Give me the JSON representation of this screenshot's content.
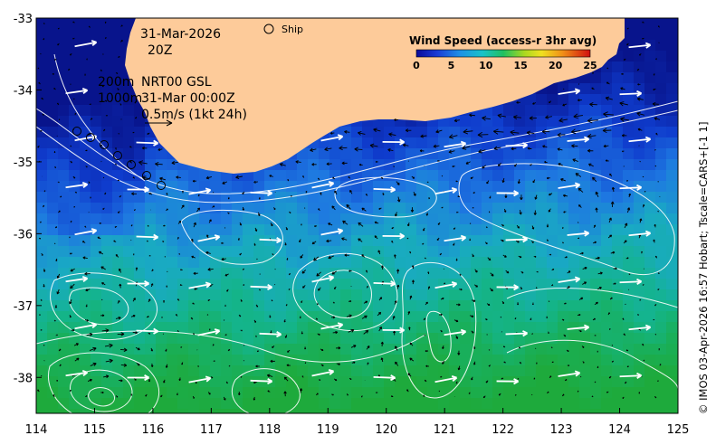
{
  "map": {
    "lon_range": [
      114,
      125
    ],
    "lat_range": [
      -38.5,
      -33
    ],
    "x_ticks": [
      "114",
      "115",
      "116",
      "117",
      "118",
      "119",
      "120",
      "121",
      "122",
      "123",
      "124",
      "125"
    ],
    "y_ticks": [
      "-33",
      "-34",
      "-35",
      "-36",
      "-37",
      "-38"
    ],
    "land_color": "#fdcb9a"
  },
  "annotations": {
    "date": "31-Mar-2026",
    "hour": "20Z",
    "depth1": "200m",
    "depth2": "1000m",
    "product": "NRT00 GSL",
    "valid": "31-Mar 00:00Z",
    "scale": "0.5m/s (1kt 24h)",
    "ship_label": "Ship"
  },
  "colorbar": {
    "title": "Wind Speed (access-r 3hr avg)",
    "ticks": [
      "0",
      "5",
      "10",
      "15",
      "20",
      "25"
    ],
    "range": [
      0,
      25
    ]
  },
  "credit": "© IMOS 03-Apr-2026 16:57 Hobart; Tscale=CARS+[-1 1]"
}
